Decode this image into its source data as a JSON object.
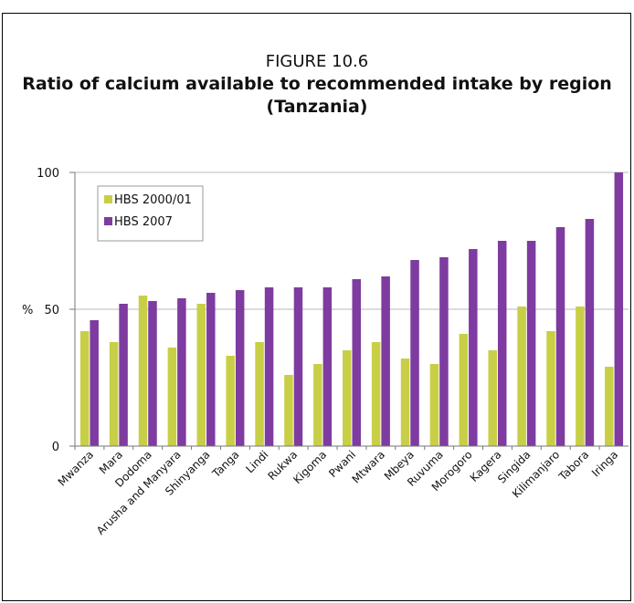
{
  "figure_label": "FIGURE 10.6",
  "chart_data": {
    "type": "bar",
    "title": "Ratio of calcium available to recommended intake by region (Tanzania)",
    "ylabel": "%",
    "xlabel": "",
    "ylim": [
      0,
      100
    ],
    "yticks": [
      "0",
      "50",
      "100"
    ],
    "grid": true,
    "legend_position": "top-left",
    "categories": [
      "Mwanza",
      "Mara",
      "Dodoma",
      "Arusha and Manyara",
      "Shinyanga",
      "Tanga",
      "Lindi",
      "Rukwa",
      "Kigoma",
      "Pwani",
      "Mtwara",
      "Mbeya",
      "Ruvuma",
      "Morogoro",
      "Kagera",
      "Singida",
      "Kilimanjaro",
      "Tabora",
      "Iringa"
    ],
    "series": [
      {
        "name": "HBS 2000/01",
        "color": "#c8cf46",
        "values": [
          42,
          38,
          55,
          36,
          52,
          33,
          38,
          26,
          30,
          35,
          38,
          32,
          30,
          41,
          35,
          51,
          42,
          51,
          29
        ]
      },
      {
        "name": "HBS 2007",
        "color": "#7e3ba0",
        "values": [
          46,
          52,
          53,
          54,
          56,
          57,
          58,
          58,
          58,
          61,
          62,
          68,
          69,
          72,
          75,
          75,
          80,
          83,
          100
        ]
      }
    ]
  }
}
